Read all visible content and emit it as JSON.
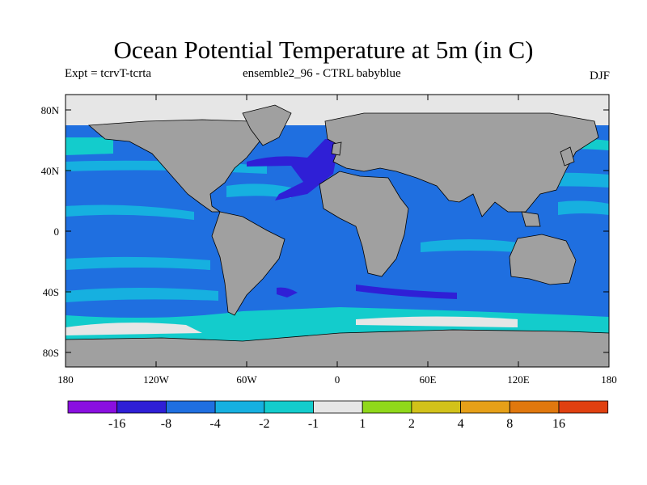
{
  "header": {
    "title": "Ocean Potential Temperature at 5m (in C)",
    "left": "Expt = tcrvT-tcrta",
    "center": "ensemble2_96 - CTRL babyblue",
    "right": "DJF"
  },
  "axes": {
    "y_labels": [
      "80N",
      "40N",
      "0",
      "40S",
      "80S"
    ],
    "x_labels": [
      "180",
      "120W",
      "60W",
      "0",
      "60E",
      "120E",
      "180"
    ]
  },
  "colorbar": {
    "colors": [
      "#8a0fe0",
      "#2f1fd6",
      "#1f6fe0",
      "#16b0e0",
      "#13cccc",
      "#e6e6e6",
      "#90d81a",
      "#d2c21a",
      "#e6a018",
      "#e0780e",
      "#e04010"
    ],
    "labels": [
      "-16",
      "-8",
      "-4",
      "-2",
      "-1",
      "1",
      "2",
      "4",
      "8",
      "16"
    ]
  },
  "style": {
    "land": "#a0a0a0",
    "ocean_base": "#1f6fe0"
  }
}
